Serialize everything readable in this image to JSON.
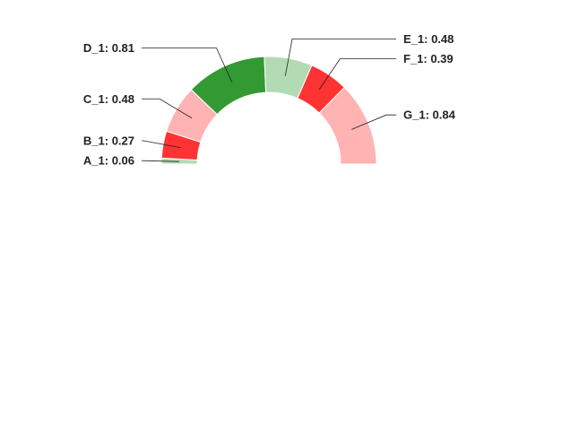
{
  "chart_data": {
    "type": "pie",
    "variant": "half-donut",
    "title": "",
    "categories": [
      "A_1",
      "B_1",
      "C_1",
      "D_1",
      "E_1",
      "F_1",
      "G_1"
    ],
    "values": [
      0.06,
      0.27,
      0.48,
      0.81,
      0.48,
      0.39,
      0.84
    ],
    "labels": [
      "A_1: 0.06",
      "B_1: 0.27",
      "C_1: 0.48",
      "D_1: 0.81",
      "E_1: 0.48",
      "F_1: 0.39",
      "G_1: 0.84"
    ],
    "colors": [
      "#b3dbb3",
      "#ff3333",
      "#ffb3b3",
      "#339933",
      "#b3dbb3",
      "#ff3333",
      "#ffb3b3"
    ],
    "legend": "none",
    "grid": false
  }
}
